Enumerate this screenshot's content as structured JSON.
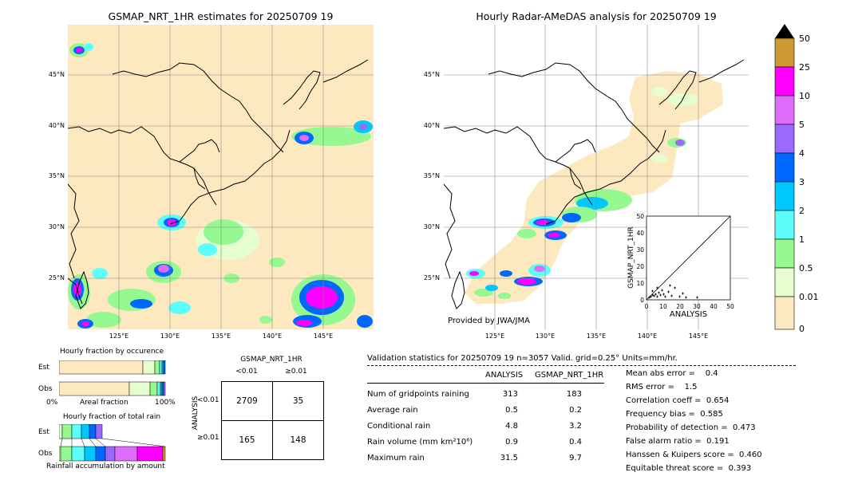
{
  "maps": {
    "left": {
      "title": "GSMAP_NRT_1HR estimates for 20250709 19",
      "lat_labels": [
        "45°N",
        "40°N",
        "35°N",
        "30°N",
        "25°N"
      ],
      "lon_labels": [
        "125°E",
        "130°E",
        "135°E",
        "140°E",
        "145°E"
      ]
    },
    "right": {
      "title": "Hourly Radar-AMeDAS analysis for 20250709 19",
      "lat_labels": [
        "45°N",
        "40°N",
        "35°N",
        "30°N",
        "25°N"
      ],
      "lon_labels": [
        "125°E",
        "130°E",
        "135°E",
        "140°E",
        "145°E"
      ],
      "credit": "Provided by JWA/JMA",
      "scatter": {
        "xlabel": "ANALYSIS",
        "ylabel": "GSMAP_NRT_1HR",
        "ticks": [
          "0",
          "10",
          "20",
          "30",
          "40",
          "50"
        ]
      }
    }
  },
  "colorbar": {
    "labels": [
      "0",
      "0.01",
      "0.5",
      "1",
      "2",
      "3",
      "4",
      "5",
      "10",
      "25",
      "50"
    ],
    "colors": [
      "#fde9c0",
      "#e6fdd0",
      "#96f890",
      "#5cfdfb",
      "#00c8ff",
      "#0068ff",
      "#9a6afe",
      "#dd6cfa",
      "#ff00ff",
      "#cc9933"
    ]
  },
  "fraction_charts": {
    "occurrence_title": "Hourly fraction by occurence",
    "amount_title": "Hourly fraction of total rain",
    "row_est": "Est",
    "row_obs": "Obs",
    "axis_left": "0%",
    "axis_mid": "Areal fraction",
    "axis_right": "100%",
    "footer": "Rainfall accumulation by amount"
  },
  "contingency": {
    "title": "GSMAP_NRT_1HR",
    "col_lt": "<0.01",
    "col_ge": "≥0.01",
    "row_axis": "ANALYSIS",
    "row_lt": "<0.01",
    "row_ge": "≥0.01",
    "cells": [
      [
        "2709",
        "35"
      ],
      [
        "165",
        "148"
      ]
    ]
  },
  "validation": {
    "header": "Validation statistics for 20250709 19  n=3057 Valid. grid=0.25° Units=mm/hr.",
    "col_analysis": "ANALYSIS",
    "col_gsmap": "GSMAP_NRT_1HR",
    "rows": [
      {
        "label": "Num of gridpoints raining",
        "analysis": "313",
        "gsmap": "183"
      },
      {
        "label": "Average rain",
        "analysis": "0.5",
        "gsmap": "0.2"
      },
      {
        "label": "Conditional rain",
        "analysis": "4.8",
        "gsmap": "3.2"
      },
      {
        "label": "Rain volume (mm km²10⁶)",
        "analysis": "0.9",
        "gsmap": "0.4"
      },
      {
        "label": "Maximum rain",
        "analysis": "31.5",
        "gsmap": "9.7"
      }
    ],
    "scores": [
      "Mean abs error =    0.4",
      "RMS error =    1.5",
      "Correlation coeff =  0.654",
      "Frequency bias =  0.585",
      "Probability of detection =  0.473",
      "False alarm ratio =  0.191",
      "Hanssen & Kuipers score =  0.460",
      "Equitable threat score =  0.393"
    ]
  }
}
